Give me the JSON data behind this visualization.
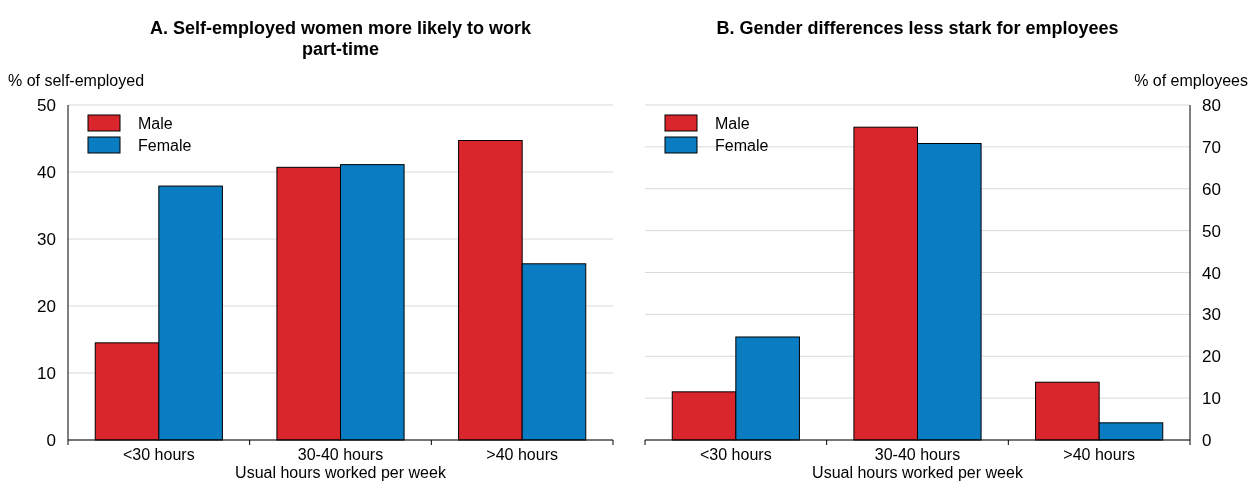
{
  "chart_data": [
    {
      "type": "bar",
      "title": "A. Self-employed women more likely to work part-time",
      "ylabel": "% of self-employed",
      "xlabel": "Usual hours worked per week",
      "categories": [
        "<30 hours",
        "30-40 hours",
        ">40 hours"
      ],
      "series": [
        {
          "name": "Male",
          "color": "#d9262c",
          "values": [
            14.5,
            40.7,
            44.7
          ]
        },
        {
          "name": "Female",
          "color": "#0a7dc2",
          "values": [
            37.9,
            41.1,
            26.3
          ]
        }
      ],
      "ylim": [
        0,
        50
      ],
      "yticks": [
        0,
        10,
        20,
        30,
        40,
        50
      ],
      "grid": "y",
      "legend": "top left"
    },
    {
      "type": "bar",
      "title": "B. Gender differences less stark for employees",
      "ylabel": "% of employees",
      "xlabel": "Usual hours worked per week",
      "categories": [
        "<30 hours",
        "30-40 hours",
        ">40 hours"
      ],
      "series": [
        {
          "name": "Male",
          "color": "#d9262c",
          "values": [
            11.5,
            74.7,
            13.8
          ]
        },
        {
          "name": "Female",
          "color": "#0a7dc2",
          "values": [
            24.6,
            70.8,
            4.1
          ]
        }
      ],
      "ylim": [
        0,
        80
      ],
      "yticks": [
        0,
        10,
        20,
        30,
        40,
        50,
        60,
        70,
        80
      ],
      "grid": "y",
      "legend": "top left"
    }
  ]
}
